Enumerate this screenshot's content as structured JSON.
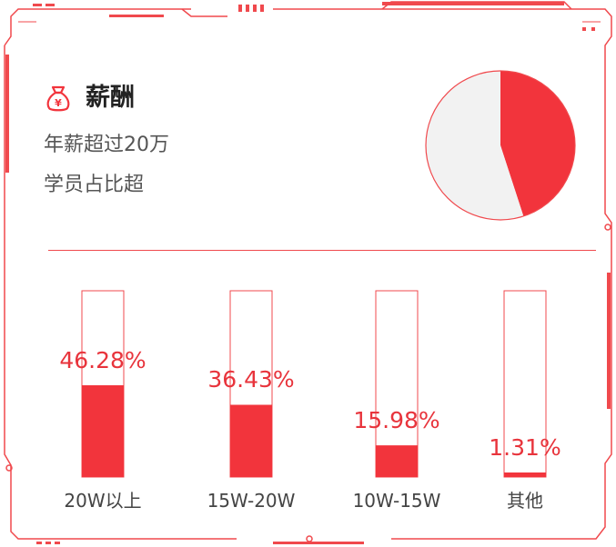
{
  "header": {
    "title": "薪酬",
    "title_icon": "money-bag-yen-icon",
    "line1": "年薪超过20万",
    "line2": "学员占比超"
  },
  "colors": {
    "accent": "#f2343c",
    "pie_rest": "#f2f2f2",
    "frame": "#f0494d"
  },
  "chart_data": [
    {
      "type": "pie",
      "slices": [
        {
          "value": 0.45,
          "color": "#f2343c"
        },
        {
          "value": 0.55,
          "color": "#f2f2f2"
        }
      ]
    },
    {
      "type": "bar",
      "categories": [
        "20W以上",
        "15W-20W",
        "10W-15W",
        "其他"
      ],
      "values": [
        46.28,
        36.43,
        15.98,
        1.31
      ],
      "data_labels": [
        "46.28%",
        "36.43%",
        "15.98%",
        "1.31%"
      ],
      "ylim": [
        0,
        100
      ]
    }
  ]
}
